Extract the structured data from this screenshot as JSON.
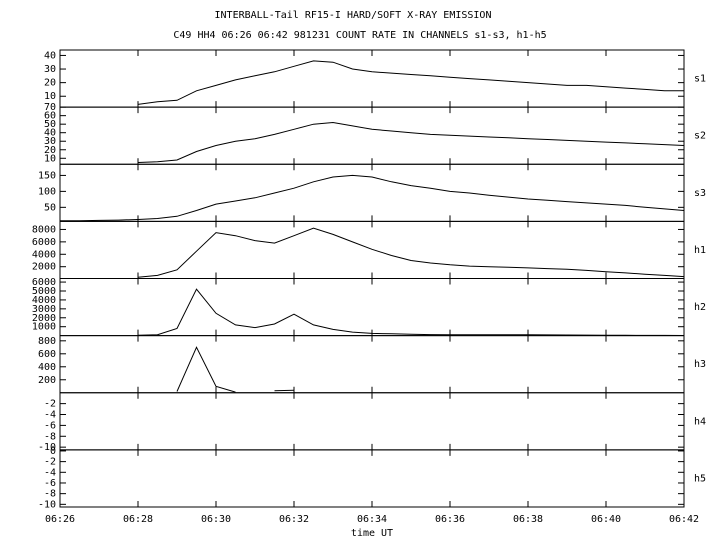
{
  "chart_data": [
    {
      "type": "line",
      "title": "INTERBALL-Tail RF15-I HARD/SOFT X-RAY EMISSION",
      "subtitle": "C49 HH4 06:26 06:42 981231  COUNT RATE IN CHANNELS s1-s3, h1-h5",
      "label": "s1",
      "ylim": [
        2,
        44
      ],
      "yticks": [
        10,
        20,
        30,
        40
      ],
      "x": [
        386,
        386.5,
        387,
        387.5,
        388,
        388.5,
        389,
        389.5,
        390,
        390.5,
        391,
        391.5,
        392,
        392.5,
        393,
        393.5,
        394,
        394.5,
        395,
        395.5,
        396,
        396.5,
        397,
        397.5,
        398,
        398.5,
        399,
        399.5,
        400,
        400.5,
        401,
        401.5,
        402
      ],
      "series": [
        {
          "color": "#000000",
          "values": [
            null,
            null,
            null,
            null,
            4,
            6,
            7,
            14,
            18,
            22,
            25,
            28,
            32,
            36,
            35,
            30,
            28,
            27,
            26,
            25,
            24,
            23,
            22,
            21,
            20,
            19,
            18,
            18,
            17,
            16,
            15,
            14,
            14
          ]
        }
      ]
    },
    {
      "type": "line",
      "label": "s2",
      "ylim": [
        3,
        70
      ],
      "yticks": [
        10,
        20,
        30,
        40,
        50,
        60,
        70
      ],
      "x": [
        386,
        386.5,
        387,
        387.5,
        388,
        388.5,
        389,
        389.5,
        390,
        390.5,
        391,
        391.5,
        392,
        392.5,
        393,
        393.5,
        394,
        394.5,
        395,
        395.5,
        396,
        396.5,
        397,
        397.5,
        398,
        398.5,
        399,
        399.5,
        400,
        400.5,
        401,
        401.5,
        402
      ],
      "series": [
        {
          "color": "#000000",
          "values": [
            null,
            null,
            null,
            null,
            5,
            6,
            8,
            18,
            25,
            30,
            33,
            38,
            44,
            50,
            52,
            48,
            44,
            42,
            40,
            38,
            37,
            36,
            35,
            34,
            33,
            32,
            31,
            30,
            29,
            28,
            27,
            26,
            25
          ]
        }
      ]
    },
    {
      "type": "line",
      "label": "s3",
      "ylim": [
        6,
        185
      ],
      "yticks": [
        50,
        100,
        150
      ],
      "x": [
        386,
        386.5,
        387,
        387.5,
        388,
        388.5,
        389,
        389.5,
        390,
        390.5,
        391,
        391.5,
        392,
        392.5,
        393,
        393.5,
        394,
        394.5,
        395,
        395.5,
        396,
        396.5,
        397,
        397.5,
        398,
        398.5,
        399,
        399.5,
        400,
        400.5,
        401,
        401.5,
        402
      ],
      "series": [
        {
          "color": "#000000",
          "values": [
            8,
            8,
            9,
            10,
            12,
            15,
            22,
            40,
            60,
            70,
            80,
            95,
            110,
            130,
            145,
            150,
            145,
            130,
            118,
            110,
            100,
            95,
            88,
            82,
            76,
            72,
            68,
            64,
            60,
            56,
            50,
            45,
            40
          ]
        }
      ]
    },
    {
      "type": "line",
      "label": "h1",
      "ylim": [
        100,
        9300
      ],
      "yticks": [
        2000,
        4000,
        6000,
        8000
      ],
      "x": [
        386,
        386.5,
        387,
        387.5,
        388,
        388.5,
        389,
        389.5,
        390,
        390.5,
        391,
        391.5,
        392,
        392.5,
        393,
        393.5,
        394,
        394.5,
        395,
        395.5,
        396,
        396.5,
        397,
        397.5,
        398,
        398.5,
        399,
        399.5,
        400,
        400.5,
        401,
        401.5,
        402
      ],
      "series": [
        {
          "color": "#000000",
          "values": [
            null,
            null,
            null,
            null,
            300,
            600,
            1500,
            4500,
            7500,
            7000,
            6200,
            5800,
            7000,
            8200,
            7200,
            6000,
            4800,
            3800,
            3000,
            2600,
            2300,
            2100,
            2000,
            1900,
            1800,
            1700,
            1600,
            1400,
            1200,
            1000,
            800,
            600,
            400
          ]
        }
      ]
    },
    {
      "type": "line",
      "label": "h2",
      "ylim": [
        0,
        6400
      ],
      "yticks": [
        1000,
        2000,
        3000,
        4000,
        5000,
        6000
      ],
      "x": [
        386,
        386.5,
        387,
        387.5,
        388,
        388.5,
        389,
        389.5,
        390,
        390.5,
        391,
        391.5,
        392,
        392.5,
        393,
        393.5,
        394,
        394.5,
        395,
        395.5,
        396,
        396.5,
        397,
        397.5,
        398,
        398.5,
        399,
        399.5,
        400,
        400.5,
        401,
        401.5,
        402
      ],
      "series": [
        {
          "color": "#000000",
          "values": [
            null,
            null,
            null,
            null,
            50,
            100,
            800,
            5200,
            2500,
            1200,
            900,
            1300,
            2400,
            1200,
            700,
            400,
            250,
            200,
            150,
            120,
            100,
            100,
            100,
            100,
            90,
            80,
            70,
            60,
            50,
            40,
            30,
            20,
            10
          ]
        }
      ]
    },
    {
      "type": "line",
      "label": "h3",
      "ylim": [
        0,
        880
      ],
      "yticks": [
        200,
        400,
        600,
        800
      ],
      "x": [
        386,
        386.5,
        387,
        387.5,
        388,
        388.5,
        389,
        389.5,
        390,
        390.5,
        391,
        391.5,
        392,
        392.5,
        393,
        393.5,
        394,
        394.5,
        395,
        395.5,
        396,
        396.5,
        397,
        397.5,
        398,
        398.5,
        399,
        399.5,
        400,
        400.5,
        401,
        401.5,
        402
      ],
      "series": [
        {
          "color": "#000000",
          "values": [
            null,
            null,
            null,
            null,
            null,
            null,
            20,
            700,
            100,
            10,
            null,
            30,
            40,
            null,
            null,
            null,
            null,
            null,
            null,
            null,
            null,
            null,
            null,
            null,
            null,
            null,
            null,
            null,
            null,
            null,
            null,
            null,
            null
          ]
        }
      ]
    },
    {
      "type": "line",
      "label": "h4",
      "ylim": [
        -10.5,
        0
      ],
      "yticks": [
        -10,
        -8,
        -6,
        -4,
        -2
      ]
    },
    {
      "type": "line",
      "label": "h5",
      "ylim": [
        -10.5,
        0.2
      ],
      "yticks": [
        -10,
        -8,
        -6,
        -4,
        -2,
        0
      ],
      "xlim": [
        386,
        402
      ],
      "xlabel": "time UT",
      "xticks": [
        {
          "value": 386,
          "label": "06:26"
        },
        {
          "value": 388,
          "label": "06:28"
        },
        {
          "value": 390,
          "label": "06:30"
        },
        {
          "value": 392,
          "label": "06:32"
        },
        {
          "value": 394,
          "label": "06:34"
        },
        {
          "value": 396,
          "label": "06:36"
        },
        {
          "value": 398,
          "label": "06:38"
        },
        {
          "value": 400,
          "label": "06:40"
        },
        {
          "value": 402,
          "label": "06:42"
        }
      ]
    }
  ]
}
